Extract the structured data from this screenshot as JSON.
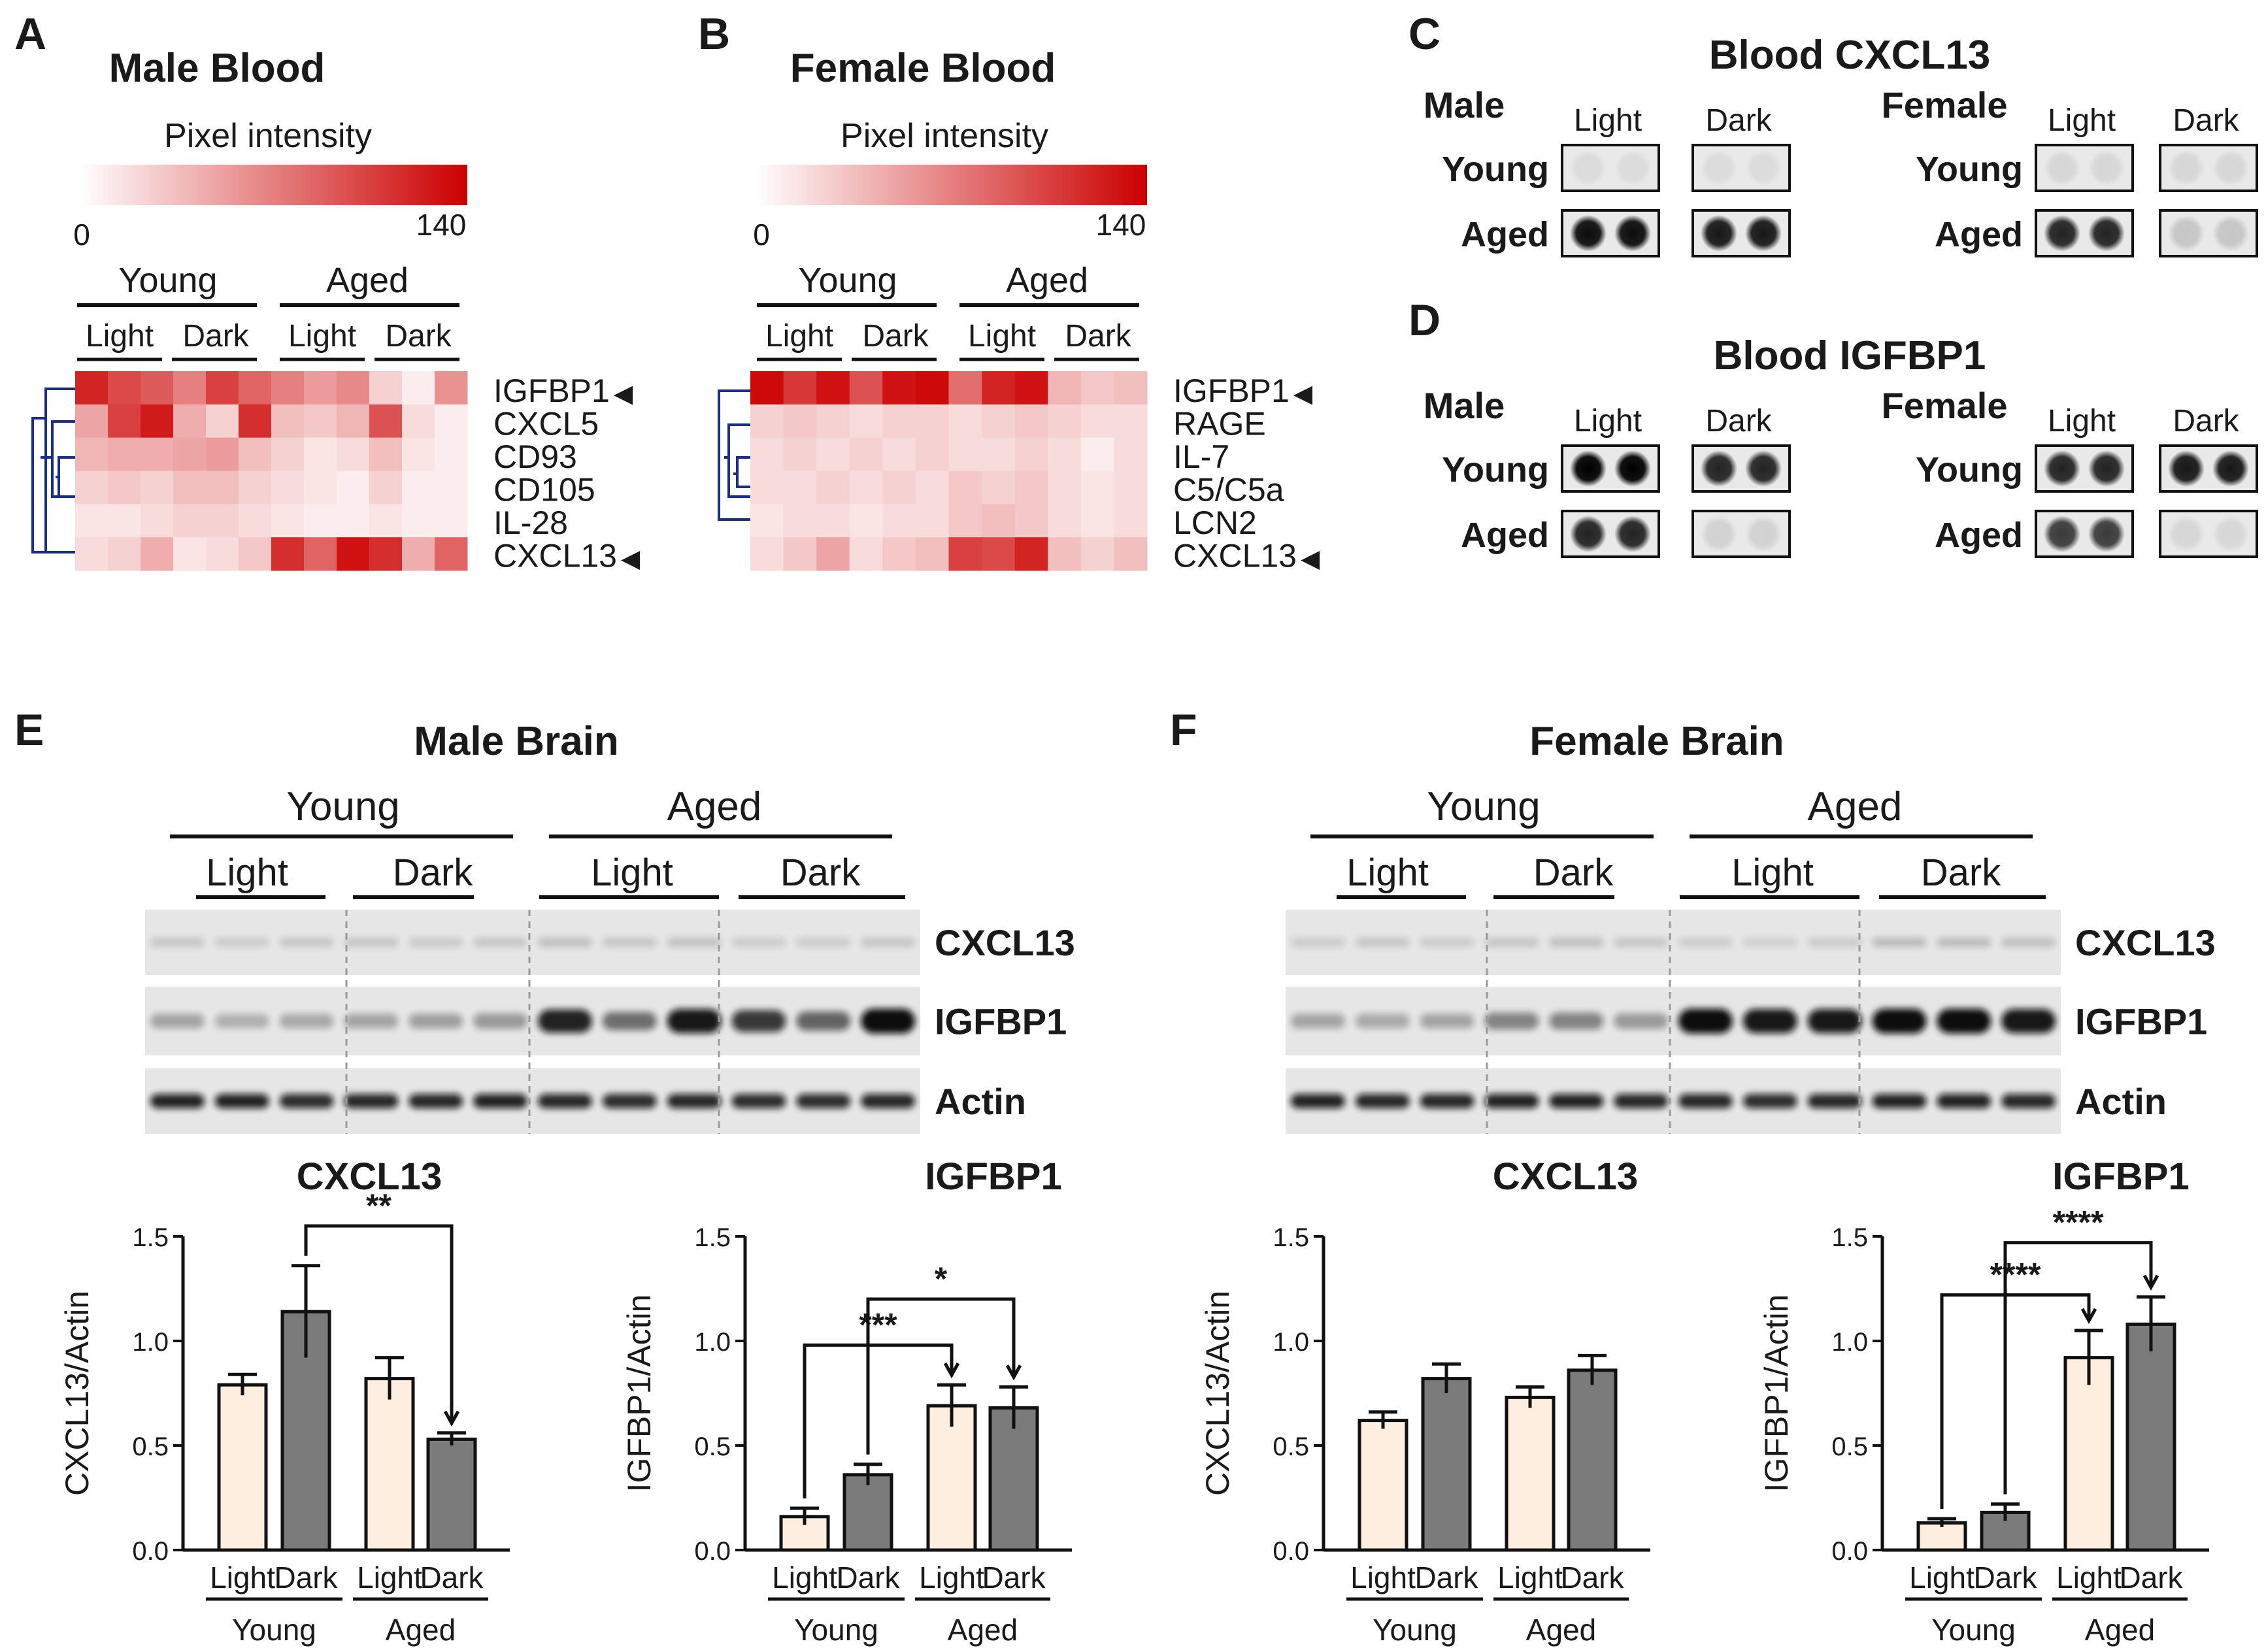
{
  "panel_letters": [
    "A",
    "B",
    "C",
    "D",
    "E",
    "F"
  ],
  "arrow": "◀",
  "heatmaps": [
    {
      "title": "Male Blood",
      "scale_label": "Pixel intensity",
      "scale_min": "0",
      "scale_max": "140",
      "scale_color": "#cc0000",
      "groups": [
        "Young",
        "Aged"
      ],
      "conditions": [
        "Light",
        "Dark",
        "Light",
        "Dark"
      ],
      "rows": [
        "IGFBP1",
        "CXCL5",
        "CD93",
        "CD105",
        "IL-28",
        "CXCL13"
      ],
      "marked_rows": [
        0,
        5
      ],
      "values": [
        [
          120,
          100,
          90,
          70,
          105,
          85,
          70,
          55,
          65,
          25,
          10,
          60
        ],
        [
          50,
          105,
          125,
          45,
          25,
          115,
          35,
          30,
          40,
          95,
          20,
          10
        ],
        [
          40,
          45,
          45,
          50,
          55,
          35,
          25,
          15,
          20,
          35,
          15,
          10
        ],
        [
          25,
          30,
          25,
          35,
          35,
          25,
          20,
          15,
          10,
          25,
          10,
          10
        ],
        [
          15,
          15,
          20,
          25,
          25,
          20,
          15,
          10,
          10,
          15,
          10,
          10
        ],
        [
          20,
          25,
          45,
          15,
          20,
          30,
          115,
          85,
          130,
          115,
          45,
          85
        ]
      ]
    },
    {
      "title": "Female Blood",
      "scale_label": "Pixel intensity",
      "scale_min": "0",
      "scale_max": "140",
      "scale_color": "#cc0000",
      "groups": [
        "Young",
        "Aged"
      ],
      "conditions": [
        "Light",
        "Dark",
        "Light",
        "Dark"
      ],
      "rows": [
        "IGFBP1",
        "RAGE",
        "IL-7",
        "C5/C5a",
        "LCN2",
        "CXCL13"
      ],
      "marked_rows": [
        0,
        5
      ],
      "values": [
        [
          135,
          110,
          130,
          95,
          130,
          135,
          80,
          120,
          130,
          40,
          30,
          35
        ],
        [
          25,
          30,
          25,
          20,
          25,
          25,
          20,
          25,
          30,
          25,
          20,
          20
        ],
        [
          20,
          25,
          20,
          25,
          20,
          25,
          20,
          20,
          25,
          20,
          10,
          20
        ],
        [
          20,
          20,
          25,
          20,
          25,
          20,
          30,
          25,
          30,
          20,
          15,
          20
        ],
        [
          15,
          20,
          20,
          15,
          20,
          20,
          30,
          35,
          30,
          20,
          15,
          20
        ],
        [
          20,
          30,
          50,
          20,
          30,
          35,
          105,
          100,
          120,
          35,
          25,
          35
        ]
      ]
    }
  ],
  "dotblots": [
    {
      "title": "Blood CXCL13",
      "sexes": [
        "Male",
        "Female"
      ],
      "conditions": [
        "Light",
        "Dark"
      ],
      "ages": [
        "Young",
        "Aged"
      ],
      "intensity": {
        "Male": [
          [
            0.04,
            0.05
          ],
          [
            0.95,
            0.9
          ]
        ],
        "Female": [
          [
            0.08,
            0.08
          ],
          [
            0.85,
            0.15
          ]
        ]
      }
    },
    {
      "title": "Blood IGFBP1",
      "sexes": [
        "Male",
        "Female"
      ],
      "conditions": [
        "Light",
        "Dark"
      ],
      "ages": [
        "Young",
        "Aged"
      ],
      "intensity": {
        "Male": [
          [
            1.0,
            0.85
          ],
          [
            0.85,
            0.1
          ]
        ],
        "Female": [
          [
            0.85,
            0.9
          ],
          [
            0.75,
            0.08
          ]
        ]
      }
    }
  ],
  "westerns": [
    {
      "title": "Male Brain",
      "groups": [
        "Young",
        "Aged"
      ],
      "conditions": [
        "Light",
        "Dark",
        "Light",
        "Dark"
      ],
      "proteins": [
        "CXCL13",
        "IGFBP1",
        "Actin"
      ],
      "intensity": {
        "CXCL13": [
          0.15,
          0.12,
          0.15,
          0.15,
          0.13,
          0.15,
          0.18,
          0.15,
          0.17,
          0.12,
          0.12,
          0.15
        ],
        "IGFBP1": [
          0.3,
          0.25,
          0.28,
          0.3,
          0.32,
          0.35,
          0.9,
          0.55,
          0.95,
          0.8,
          0.6,
          1.0
        ],
        "Actin": [
          0.9,
          0.9,
          0.85,
          0.88,
          0.88,
          0.9,
          0.88,
          0.85,
          0.88,
          0.85,
          0.85,
          0.88
        ]
      }
    },
    {
      "title": "Female Brain",
      "groups": [
        "Young",
        "Aged"
      ],
      "conditions": [
        "Light",
        "Dark",
        "Light",
        "Dark"
      ],
      "proteins": [
        "CXCL13",
        "IGFBP1",
        "Actin"
      ],
      "intensity": {
        "CXCL13": [
          0.12,
          0.15,
          0.12,
          0.15,
          0.18,
          0.15,
          0.12,
          0.1,
          0.12,
          0.2,
          0.2,
          0.18
        ],
        "IGFBP1": [
          0.3,
          0.28,
          0.3,
          0.45,
          0.45,
          0.35,
          1.0,
          0.95,
          0.95,
          1.0,
          1.0,
          0.95
        ],
        "Actin": [
          0.9,
          0.88,
          0.88,
          0.9,
          0.9,
          0.88,
          0.88,
          0.85,
          0.88,
          0.9,
          0.9,
          0.88
        ]
      }
    }
  ],
  "chart_data": [
    {
      "type": "bar",
      "title": "CXCL13",
      "ylabel": "CXCL13/Actin",
      "ylim": [
        0,
        1.5
      ],
      "yticks": [
        "0.0",
        "0.5",
        "1.0",
        "1.5"
      ],
      "categories": [
        "Light",
        "Dark",
        "Light",
        "Dark"
      ],
      "groups": [
        "Young",
        "Aged"
      ],
      "values": [
        0.79,
        1.14,
        0.82,
        0.53
      ],
      "errors": [
        0.05,
        0.22,
        0.1,
        0.03
      ],
      "colors": [
        "#fdeee0",
        "#7b7b7b",
        "#fdeee0",
        "#7b7b7b"
      ],
      "significance": [
        {
          "from": 1,
          "to": 3,
          "label": "**",
          "y": 1.55
        }
      ]
    },
    {
      "type": "bar",
      "title": "IGFBP1",
      "ylabel": "IGFBP1/Actin",
      "ylim": [
        0,
        1.5
      ],
      "yticks": [
        "0.0",
        "0.5",
        "1.0",
        "1.5"
      ],
      "categories": [
        "Light",
        "Dark",
        "Light",
        "Dark"
      ],
      "groups": [
        "Young",
        "Aged"
      ],
      "values": [
        0.16,
        0.36,
        0.69,
        0.68
      ],
      "errors": [
        0.04,
        0.05,
        0.1,
        0.1
      ],
      "colors": [
        "#fdeee0",
        "#7b7b7b",
        "#fdeee0",
        "#7b7b7b"
      ],
      "significance": [
        {
          "from": 0,
          "to": 2,
          "label": "***",
          "y": 0.98
        },
        {
          "from": 1,
          "to": 3,
          "label": "*",
          "y": 1.2
        }
      ]
    },
    {
      "type": "bar",
      "title": "CXCL13",
      "ylabel": "CXCL13/Actin",
      "ylim": [
        0,
        1.5
      ],
      "yticks": [
        "0.0",
        "0.5",
        "1.0",
        "1.5"
      ],
      "categories": [
        "Light",
        "Dark",
        "Light",
        "Dark"
      ],
      "groups": [
        "Young",
        "Aged"
      ],
      "values": [
        0.62,
        0.82,
        0.73,
        0.86
      ],
      "errors": [
        0.04,
        0.07,
        0.05,
        0.07
      ],
      "colors": [
        "#fdeee0",
        "#7b7b7b",
        "#fdeee0",
        "#7b7b7b"
      ],
      "significance": []
    },
    {
      "type": "bar",
      "title": "IGFBP1",
      "ylabel": "IGFBP1/Actin",
      "ylim": [
        0,
        1.5
      ],
      "yticks": [
        "0.0",
        "0.5",
        "1.0",
        "1.5"
      ],
      "categories": [
        "Light",
        "Dark",
        "Light",
        "Dark"
      ],
      "groups": [
        "Young",
        "Aged"
      ],
      "values": [
        0.13,
        0.18,
        0.92,
        1.08
      ],
      "errors": [
        0.02,
        0.04,
        0.13,
        0.13
      ],
      "colors": [
        "#fdeee0",
        "#7b7b7b",
        "#fdeee0",
        "#7b7b7b"
      ],
      "significance": [
        {
          "from": 0,
          "to": 2,
          "label": "****",
          "y": 1.22
        },
        {
          "from": 1,
          "to": 3,
          "label": "****",
          "y": 1.47
        }
      ]
    }
  ]
}
